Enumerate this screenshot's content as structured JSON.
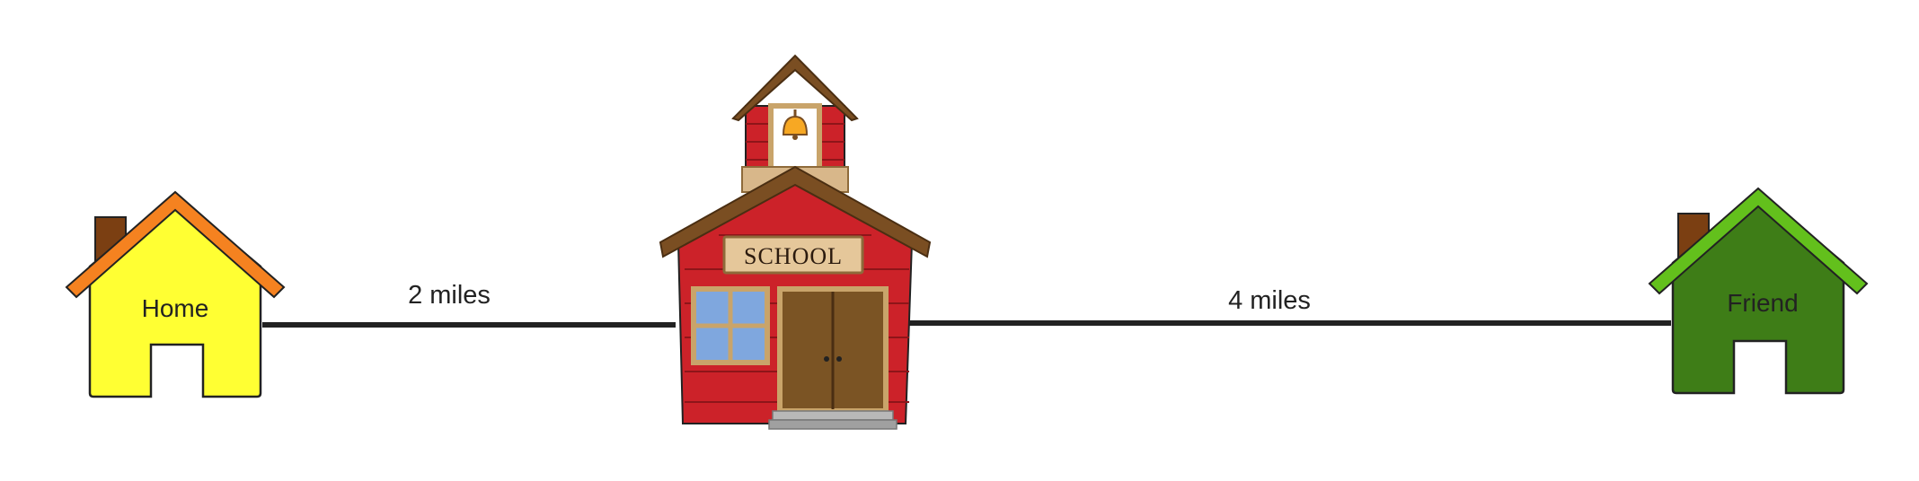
{
  "home": {
    "label": "Home",
    "roof_color": "#F58220",
    "wall_color": "#FFFF33"
  },
  "school": {
    "sign": "SCHOOL",
    "wall_color": "#CC2229",
    "roof_color": "#7A4E22"
  },
  "friend": {
    "label": "Friend",
    "roof_color": "#63C01C",
    "wall_color": "#3E7D17"
  },
  "distances": {
    "home_to_school": "2 miles",
    "school_to_friend": "4 miles"
  }
}
